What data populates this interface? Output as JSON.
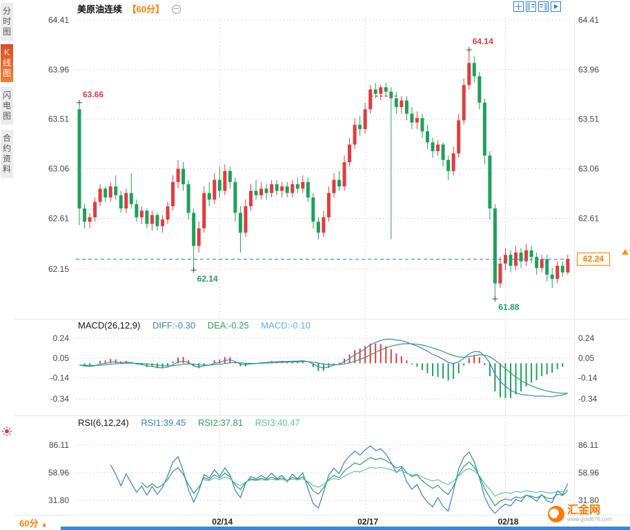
{
  "header": {
    "symbol": "美原油连续",
    "period_tag": "【60分】",
    "collapse_icon": "circle-minus-icon",
    "toolbar_icons": [
      "layout-grid-icon",
      "pane-left-icon",
      "pane-right-icon",
      "pane-expand-icon"
    ]
  },
  "sidebar": {
    "items": [
      {
        "label": "分时图",
        "active": false
      },
      {
        "label": "K线图",
        "active": true
      },
      {
        "label": "闪电图",
        "active": false
      },
      {
        "label": "合约资料",
        "active": false
      }
    ]
  },
  "main_chart": {
    "current_price_label": "62.24"
  },
  "macd_panel": {
    "title": "MACD(26,12,9)",
    "diff": "DIFF:-0.30",
    "dea": "DEA:-0.25",
    "macd": "MACD:-0.10"
  },
  "rsi_panel": {
    "title": "RSI(6,12,24)",
    "rsi1": "RSI1:39.45",
    "rsi2": "RSI2:37.81",
    "rsi3": "RSI3:40.47"
  },
  "footer": {
    "period_label": "60分",
    "period_arrow": "▲",
    "logo_text": "汇金网",
    "logo_url": "www.gold678.com"
  },
  "colors": {
    "up": "#e23b3d",
    "down": "#1fa05b",
    "grid": "#d9d9d9",
    "blue": "#2a8ae2",
    "accent": "#ff7e00",
    "diff_line": "#3b82c8",
    "dea_line": "#2fa05f",
    "macd_text": "#54b8e8",
    "rsi1": "#2f7ed8",
    "rsi2": "#2e9e5b",
    "rsi3": "#63c2a0"
  },
  "chart_data": {
    "type": "candlestick",
    "title": "美原油连续 60分",
    "interval": "60min",
    "color_convention": "red=up, green=down",
    "y_axis": [
      64.41,
      63.96,
      63.51,
      63.06,
      62.61,
      62.15
    ],
    "current_price": 62.24,
    "macd": {
      "params": [
        26,
        12,
        9
      ],
      "diff": -0.3,
      "dea": -0.25,
      "macd": -0.1,
      "axis": [
        0.24,
        0.05,
        -0.14,
        -0.34
      ]
    },
    "rsi": {
      "params": [
        6,
        12,
        24
      ],
      "rsi1": 39.45,
      "rsi2": 37.81,
      "rsi3": 40.47,
      "axis": [
        86.11,
        58.96,
        31.8
      ]
    },
    "day_boundaries": [
      {
        "index": 27,
        "label": "02/14"
      },
      {
        "index": 55,
        "label": "02/17"
      },
      {
        "index": 82,
        "label": "02/18"
      }
    ],
    "annotations": [
      {
        "index": 0,
        "price": 63.66,
        "label": "63.66",
        "kind": "high"
      },
      {
        "index": 22,
        "price": 62.14,
        "label": "62.14",
        "kind": "low"
      },
      {
        "index": 75,
        "price": 64.14,
        "label": "64.14",
        "kind": "high"
      },
      {
        "index": 80,
        "price": 61.88,
        "label": "61.88",
        "kind": "low"
      }
    ],
    "high_marker": {
      "price": 63.72,
      "from_index": 56,
      "to_index": 61
    },
    "candles": [
      [
        63.6,
        63.66,
        62.55,
        62.7
      ],
      [
        62.7,
        62.74,
        62.52,
        62.58
      ],
      [
        62.58,
        62.66,
        62.52,
        62.62
      ],
      [
        62.62,
        62.8,
        62.58,
        62.76
      ],
      [
        62.76,
        62.92,
        62.72,
        62.88
      ],
      [
        62.88,
        62.9,
        62.76,
        62.8
      ],
      [
        62.8,
        62.94,
        62.76,
        62.9
      ],
      [
        62.9,
        63.0,
        62.78,
        62.82
      ],
      [
        62.82,
        62.86,
        62.66,
        62.7
      ],
      [
        62.7,
        62.88,
        62.66,
        62.84
      ],
      [
        62.84,
        63.02,
        62.7,
        62.74
      ],
      [
        62.74,
        62.78,
        62.58,
        62.62
      ],
      [
        62.62,
        62.72,
        62.56,
        62.68
      ],
      [
        62.68,
        62.7,
        62.52,
        62.56
      ],
      [
        62.56,
        62.68,
        62.5,
        62.64
      ],
      [
        62.64,
        62.66,
        62.5,
        62.54
      ],
      [
        62.54,
        62.64,
        62.48,
        62.6
      ],
      [
        62.6,
        62.76,
        62.56,
        62.72
      ],
      [
        62.72,
        63.0,
        62.68,
        62.94
      ],
      [
        62.94,
        63.14,
        62.88,
        63.06
      ],
      [
        63.06,
        63.12,
        62.86,
        62.92
      ],
      [
        62.92,
        62.96,
        62.6,
        62.66
      ],
      [
        62.66,
        62.7,
        62.14,
        62.36
      ],
      [
        62.36,
        62.58,
        62.3,
        62.52
      ],
      [
        62.52,
        62.9,
        62.48,
        62.84
      ],
      [
        62.84,
        62.94,
        62.72,
        62.78
      ],
      [
        62.78,
        63.02,
        62.74,
        62.96
      ],
      [
        62.96,
        63.08,
        62.8,
        62.86
      ],
      [
        62.86,
        63.1,
        62.82,
        63.04
      ],
      [
        63.04,
        63.08,
        62.88,
        62.94
      ],
      [
        62.94,
        62.98,
        62.58,
        62.66
      ],
      [
        62.66,
        62.72,
        62.3,
        62.48
      ],
      [
        62.48,
        62.78,
        62.44,
        62.72
      ],
      [
        62.72,
        62.92,
        62.68,
        62.86
      ],
      [
        62.86,
        62.96,
        62.78,
        62.82
      ],
      [
        62.82,
        62.94,
        62.78,
        62.88
      ],
      [
        62.88,
        62.92,
        62.78,
        62.84
      ],
      [
        62.84,
        62.96,
        62.8,
        62.92
      ],
      [
        62.92,
        62.96,
        62.82,
        62.86
      ],
      [
        62.86,
        62.94,
        62.8,
        62.9
      ],
      [
        62.9,
        62.94,
        62.8,
        62.84
      ],
      [
        62.84,
        62.96,
        62.8,
        62.92
      ],
      [
        62.92,
        62.98,
        62.84,
        62.88
      ],
      [
        62.88,
        63.0,
        62.84,
        62.94
      ],
      [
        62.94,
        62.98,
        62.76,
        62.8
      ],
      [
        62.8,
        62.84,
        62.52,
        62.58
      ],
      [
        62.58,
        62.62,
        62.42,
        62.48
      ],
      [
        62.48,
        62.68,
        62.44,
        62.62
      ],
      [
        62.62,
        62.9,
        62.58,
        62.84
      ],
      [
        62.84,
        63.02,
        62.8,
        62.96
      ],
      [
        62.96,
        63.04,
        62.86,
        62.9
      ],
      [
        62.9,
        63.18,
        62.86,
        63.12
      ],
      [
        63.12,
        63.34,
        63.08,
        63.28
      ],
      [
        63.28,
        63.52,
        63.24,
        63.46
      ],
      [
        63.46,
        63.54,
        63.36,
        63.42
      ],
      [
        63.42,
        63.66,
        63.38,
        63.6
      ],
      [
        63.6,
        63.82,
        63.56,
        63.78
      ],
      [
        63.78,
        63.84,
        63.7,
        63.74
      ],
      [
        63.74,
        63.82,
        63.68,
        63.8
      ],
      [
        63.8,
        63.84,
        63.72,
        63.76
      ],
      [
        63.76,
        63.8,
        62.42,
        63.7
      ],
      [
        63.7,
        63.76,
        63.56,
        63.62
      ],
      [
        63.62,
        63.72,
        63.56,
        63.68
      ],
      [
        63.68,
        63.72,
        63.5,
        63.56
      ],
      [
        63.56,
        63.62,
        63.42,
        63.48
      ],
      [
        63.48,
        63.58,
        63.42,
        63.52
      ],
      [
        63.52,
        63.56,
        63.34,
        63.4
      ],
      [
        63.4,
        63.46,
        63.24,
        63.3
      ],
      [
        63.3,
        63.34,
        63.16,
        63.22
      ],
      [
        63.22,
        63.32,
        63.18,
        63.28
      ],
      [
        63.28,
        63.3,
        63.08,
        63.14
      ],
      [
        63.14,
        63.18,
        62.96,
        63.04
      ],
      [
        63.04,
        63.26,
        63.0,
        63.2
      ],
      [
        63.2,
        63.56,
        63.16,
        63.5
      ],
      [
        63.5,
        63.88,
        63.46,
        63.82
      ],
      [
        63.82,
        64.14,
        63.78,
        64.02
      ],
      [
        64.02,
        64.08,
        63.84,
        63.9
      ],
      [
        63.9,
        63.94,
        63.6,
        63.66
      ],
      [
        63.66,
        63.7,
        63.1,
        63.18
      ],
      [
        63.18,
        63.22,
        62.6,
        62.7
      ],
      [
        62.7,
        62.74,
        61.88,
        62.02
      ],
      [
        62.02,
        62.26,
        61.98,
        62.2
      ],
      [
        62.2,
        62.34,
        62.14,
        62.28
      ],
      [
        62.28,
        62.32,
        62.12,
        62.18
      ],
      [
        62.18,
        62.36,
        62.14,
        62.3
      ],
      [
        62.3,
        62.34,
        62.16,
        62.22
      ],
      [
        62.22,
        62.38,
        62.18,
        62.32
      ],
      [
        62.32,
        62.36,
        62.2,
        62.26
      ],
      [
        62.26,
        62.3,
        62.1,
        62.16
      ],
      [
        62.16,
        62.28,
        62.12,
        62.24
      ],
      [
        62.24,
        62.28,
        62.04,
        62.1
      ],
      [
        62.1,
        62.16,
        61.98,
        62.06
      ],
      [
        62.06,
        62.22,
        62.02,
        62.18
      ],
      [
        62.18,
        62.22,
        62.08,
        62.12
      ],
      [
        62.12,
        62.28,
        62.1,
        62.24
      ]
    ]
  }
}
